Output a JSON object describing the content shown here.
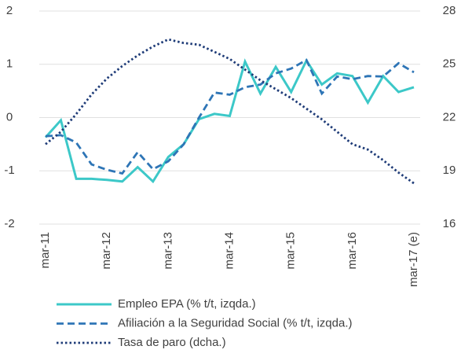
{
  "chart_data": {
    "type": "line",
    "categories": [
      "mar-11",
      null,
      null,
      null,
      "mar-12",
      null,
      null,
      null,
      "mar-13",
      null,
      null,
      null,
      "mar-14",
      null,
      null,
      null,
      "mar-15",
      null,
      null,
      null,
      "mar-16",
      null,
      null,
      null,
      "mar-17 (e)"
    ],
    "ylim": [
      -2,
      2
    ],
    "yticks": [
      -2,
      -1,
      0,
      1,
      2
    ],
    "y2lim": [
      16,
      28
    ],
    "y2ticks": [
      16,
      19,
      22,
      25,
      28
    ],
    "grid": true,
    "legend": "bottom",
    "series": [
      {
        "name": "Empleo EPA (% t/t, izqda.)",
        "color": "#3cc8c8",
        "style": "solid",
        "values": [
          -0.37,
          -0.05,
          -1.15,
          -1.15,
          -1.17,
          -1.2,
          -0.93,
          -1.2,
          -0.74,
          -0.5,
          -0.03,
          0.07,
          0.03,
          1.05,
          0.45,
          0.95,
          0.48,
          1.07,
          0.62,
          0.83,
          0.78,
          0.28,
          0.78,
          0.48,
          0.57
        ]
      },
      {
        "name": "Afiliación a la Seguridad Social (% t/t, izqda.)",
        "color": "#2e75b6",
        "style": "dashed",
        "values": [
          -0.35,
          -0.33,
          -0.47,
          -0.88,
          -0.98,
          -1.05,
          -0.65,
          -0.97,
          -0.82,
          -0.5,
          0,
          0.47,
          0.43,
          0.57,
          0.62,
          0.83,
          0.92,
          1.08,
          0.45,
          0.77,
          0.72,
          0.78,
          0.77,
          1.02,
          0.85
        ]
      },
      {
        "name": "Tasa de paro (dcha.)",
        "color": "#1f3c78",
        "style": "dotted",
        "axis": "y2",
        "values": [
          20.5,
          21.2,
          22.2,
          23.3,
          24.2,
          24.9,
          25.5,
          26.0,
          26.4,
          26.2,
          26.1,
          25.7,
          25.3,
          24.7,
          24.1,
          23.6,
          23.1,
          22.5,
          21.9,
          21.2,
          20.5,
          20.2,
          19.6,
          18.9,
          18.3
        ]
      }
    ]
  }
}
